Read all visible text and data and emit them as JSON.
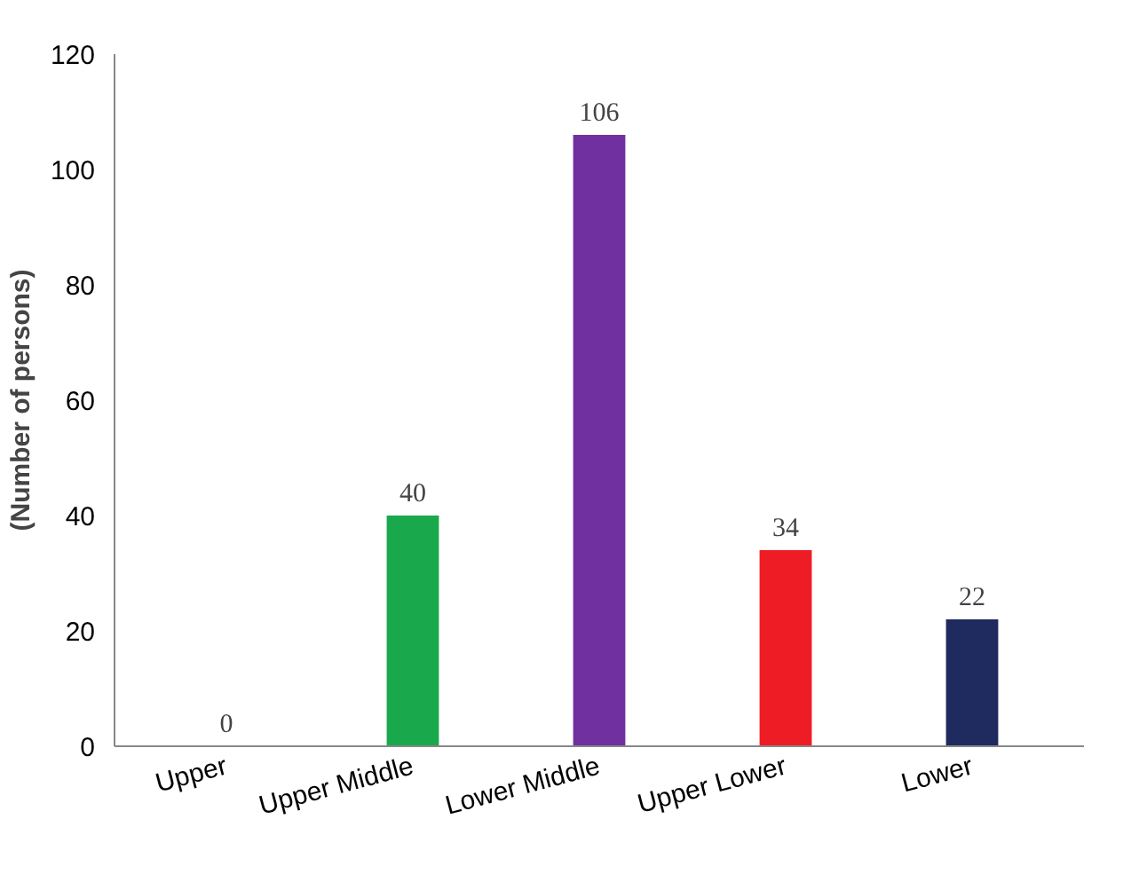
{
  "chart_data": {
    "type": "bar",
    "ylabel": "(Number of persons)",
    "categories": [
      "Upper",
      "Upper Middle",
      "Lower Middle",
      "Upper Lower",
      "Lower"
    ],
    "values": [
      0,
      40,
      106,
      34,
      22
    ],
    "colors": [
      "#1aa84c",
      "#1aa84c",
      "#7030a0",
      "#ee1c24",
      "#1f2a5e"
    ],
    "ylim": [
      0,
      120
    ],
    "yticks": [
      0,
      20,
      40,
      60,
      80,
      100,
      120
    ],
    "grid": false,
    "data_labels": true
  }
}
